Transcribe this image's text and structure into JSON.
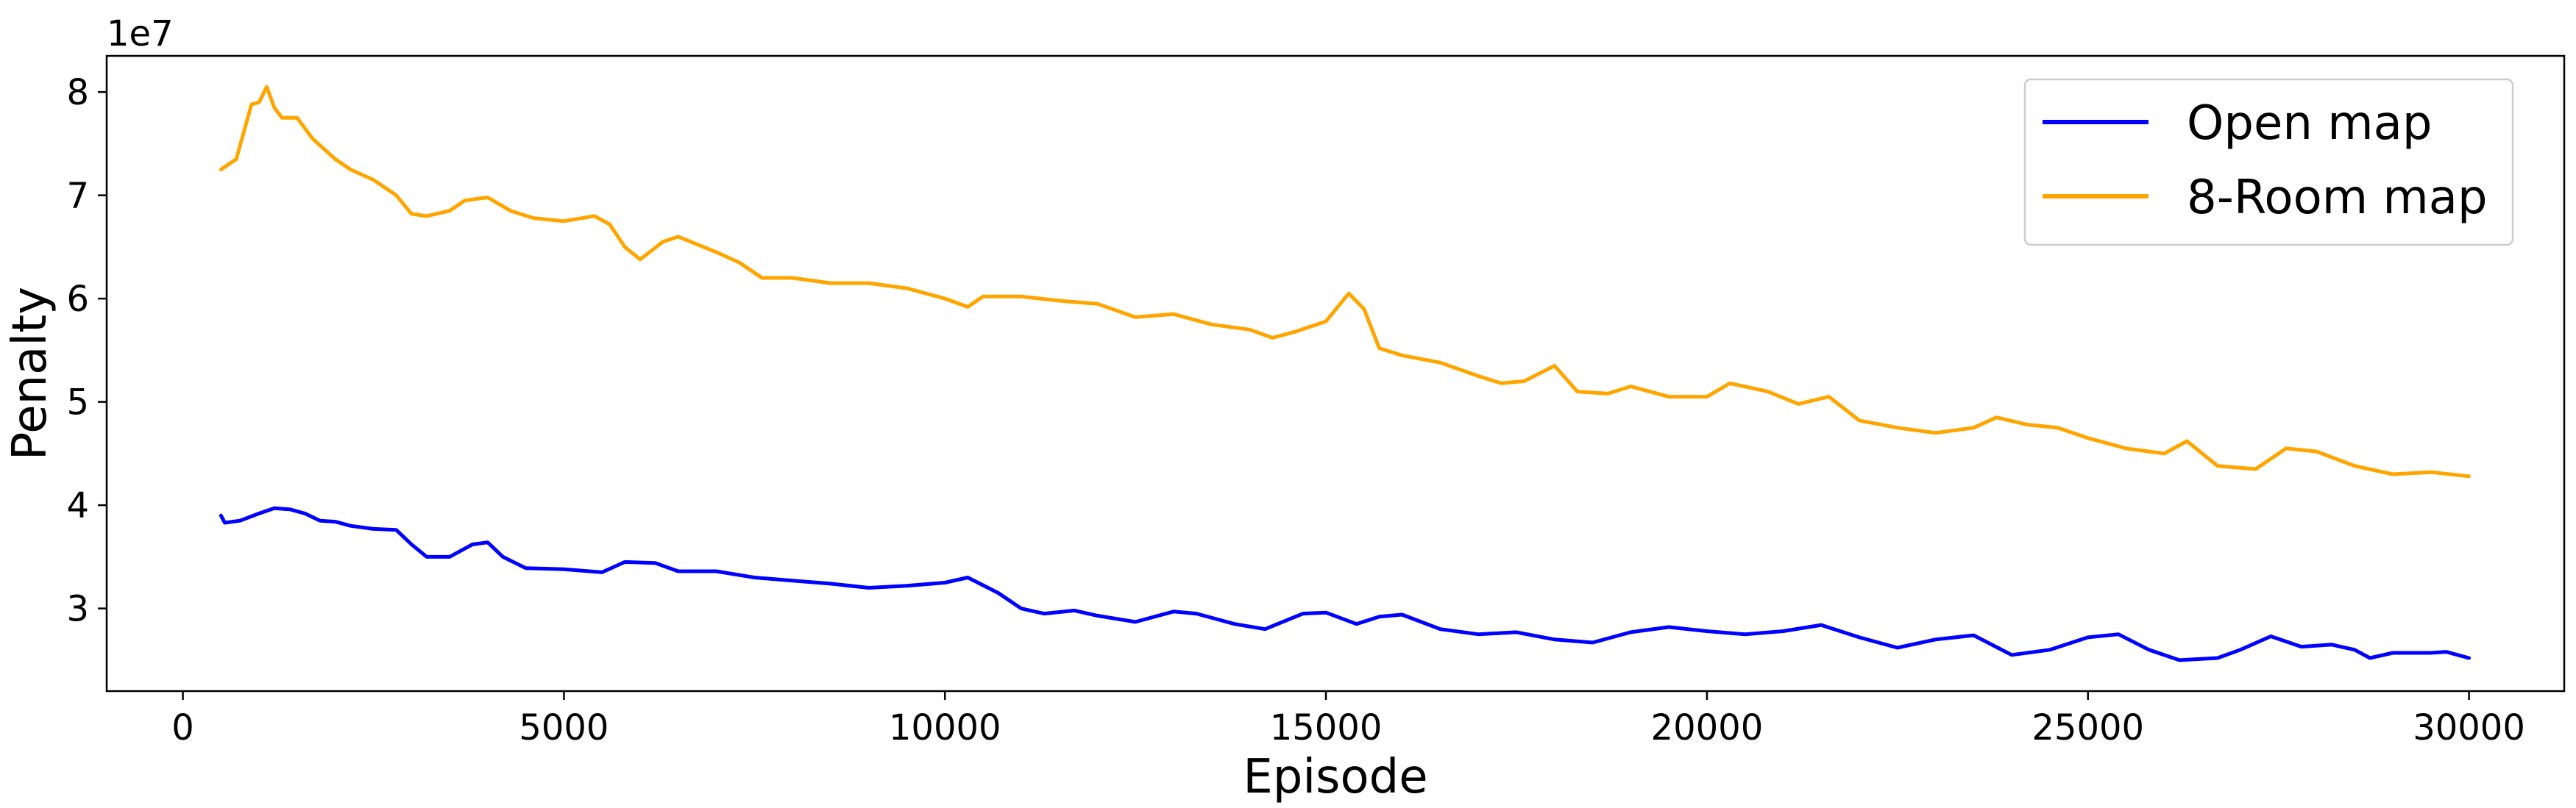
{
  "chart_data": {
    "type": "line",
    "title": "",
    "xlabel": "Episode",
    "ylabel": "Penalty",
    "y_exponent_label": "1e7",
    "xlim": [
      -1000,
      31250
    ],
    "ylim": [
      2.2,
      8.35
    ],
    "x_ticks": [
      0,
      5000,
      10000,
      15000,
      20000,
      25000,
      30000
    ],
    "x_tick_labels": [
      "0",
      "5000",
      "10000",
      "15000",
      "20000",
      "25000",
      "30000"
    ],
    "y_ticks": [
      3,
      4,
      5,
      6,
      7,
      8
    ],
    "y_tick_labels": [
      "3",
      "4",
      "5",
      "6",
      "7",
      "8"
    ],
    "grid": false,
    "legend_position": "top-right",
    "series": [
      {
        "name": "Open map",
        "color": "#0000ff",
        "points": [
          [
            500,
            3.9
          ],
          [
            550,
            3.83
          ],
          [
            750,
            3.85
          ],
          [
            1000,
            3.92
          ],
          [
            1200,
            3.97
          ],
          [
            1400,
            3.96
          ],
          [
            1600,
            3.92
          ],
          [
            1800,
            3.85
          ],
          [
            2000,
            3.84
          ],
          [
            2200,
            3.8
          ],
          [
            2500,
            3.77
          ],
          [
            2800,
            3.76
          ],
          [
            3000,
            3.62
          ],
          [
            3200,
            3.5
          ],
          [
            3500,
            3.5
          ],
          [
            3800,
            3.62
          ],
          [
            4000,
            3.64
          ],
          [
            4200,
            3.5
          ],
          [
            4500,
            3.39
          ],
          [
            5000,
            3.38
          ],
          [
            5500,
            3.35
          ],
          [
            5800,
            3.45
          ],
          [
            6200,
            3.44
          ],
          [
            6500,
            3.36
          ],
          [
            7000,
            3.36
          ],
          [
            7500,
            3.3
          ],
          [
            8000,
            3.27
          ],
          [
            8500,
            3.24
          ],
          [
            9000,
            3.2
          ],
          [
            9500,
            3.22
          ],
          [
            10000,
            3.25
          ],
          [
            10300,
            3.3
          ],
          [
            10700,
            3.15
          ],
          [
            11000,
            3.0
          ],
          [
            11300,
            2.95
          ],
          [
            11700,
            2.98
          ],
          [
            12000,
            2.93
          ],
          [
            12500,
            2.87
          ],
          [
            13000,
            2.97
          ],
          [
            13300,
            2.95
          ],
          [
            13800,
            2.85
          ],
          [
            14200,
            2.8
          ],
          [
            14700,
            2.95
          ],
          [
            15000,
            2.96
          ],
          [
            15400,
            2.85
          ],
          [
            15700,
            2.92
          ],
          [
            16000,
            2.94
          ],
          [
            16500,
            2.8
          ],
          [
            17000,
            2.75
          ],
          [
            17500,
            2.77
          ],
          [
            18000,
            2.7
          ],
          [
            18500,
            2.67
          ],
          [
            19000,
            2.77
          ],
          [
            19500,
            2.82
          ],
          [
            20000,
            2.78
          ],
          [
            20500,
            2.75
          ],
          [
            21000,
            2.78
          ],
          [
            21500,
            2.84
          ],
          [
            22000,
            2.72
          ],
          [
            22500,
            2.62
          ],
          [
            23000,
            2.7
          ],
          [
            23500,
            2.74
          ],
          [
            24000,
            2.55
          ],
          [
            24500,
            2.6
          ],
          [
            25000,
            2.72
          ],
          [
            25400,
            2.75
          ],
          [
            25800,
            2.6
          ],
          [
            26200,
            2.5
          ],
          [
            26700,
            2.52
          ],
          [
            27000,
            2.6
          ],
          [
            27400,
            2.73
          ],
          [
            27800,
            2.63
          ],
          [
            28200,
            2.65
          ],
          [
            28500,
            2.6
          ],
          [
            28700,
            2.52
          ],
          [
            29000,
            2.57
          ],
          [
            29500,
            2.57
          ],
          [
            29700,
            2.58
          ],
          [
            30000,
            2.52
          ]
        ]
      },
      {
        "name": "8-Room map",
        "color": "#ffa500",
        "points": [
          [
            500,
            7.25
          ],
          [
            700,
            7.35
          ],
          [
            900,
            7.88
          ],
          [
            1000,
            7.9
          ],
          [
            1100,
            8.05
          ],
          [
            1200,
            7.85
          ],
          [
            1300,
            7.75
          ],
          [
            1500,
            7.75
          ],
          [
            1700,
            7.55
          ],
          [
            2000,
            7.35
          ],
          [
            2200,
            7.25
          ],
          [
            2500,
            7.15
          ],
          [
            2800,
            7.0
          ],
          [
            3000,
            6.82
          ],
          [
            3200,
            6.8
          ],
          [
            3500,
            6.85
          ],
          [
            3700,
            6.95
          ],
          [
            4000,
            6.98
          ],
          [
            4300,
            6.85
          ],
          [
            4600,
            6.78
          ],
          [
            5000,
            6.75
          ],
          [
            5400,
            6.8
          ],
          [
            5600,
            6.72
          ],
          [
            5800,
            6.5
          ],
          [
            6000,
            6.38
          ],
          [
            6300,
            6.55
          ],
          [
            6500,
            6.6
          ],
          [
            7000,
            6.45
          ],
          [
            7300,
            6.35
          ],
          [
            7600,
            6.2
          ],
          [
            8000,
            6.2
          ],
          [
            8500,
            6.15
          ],
          [
            9000,
            6.15
          ],
          [
            9500,
            6.1
          ],
          [
            10000,
            6.0
          ],
          [
            10300,
            5.92
          ],
          [
            10500,
            6.02
          ],
          [
            11000,
            6.02
          ],
          [
            11500,
            5.98
          ],
          [
            12000,
            5.95
          ],
          [
            12500,
            5.82
          ],
          [
            13000,
            5.85
          ],
          [
            13500,
            5.75
          ],
          [
            14000,
            5.7
          ],
          [
            14300,
            5.62
          ],
          [
            14600,
            5.68
          ],
          [
            15000,
            5.78
          ],
          [
            15300,
            6.05
          ],
          [
            15500,
            5.9
          ],
          [
            15700,
            5.52
          ],
          [
            16000,
            5.45
          ],
          [
            16500,
            5.38
          ],
          [
            17000,
            5.25
          ],
          [
            17300,
            5.18
          ],
          [
            17600,
            5.2
          ],
          [
            18000,
            5.35
          ],
          [
            18300,
            5.1
          ],
          [
            18700,
            5.08
          ],
          [
            19000,
            5.15
          ],
          [
            19500,
            5.05
          ],
          [
            20000,
            5.05
          ],
          [
            20300,
            5.18
          ],
          [
            20800,
            5.1
          ],
          [
            21200,
            4.98
          ],
          [
            21600,
            5.05
          ],
          [
            22000,
            4.82
          ],
          [
            22500,
            4.75
          ],
          [
            23000,
            4.7
          ],
          [
            23500,
            4.75
          ],
          [
            23800,
            4.85
          ],
          [
            24200,
            4.78
          ],
          [
            24600,
            4.75
          ],
          [
            25000,
            4.65
          ],
          [
            25500,
            4.55
          ],
          [
            26000,
            4.5
          ],
          [
            26300,
            4.62
          ],
          [
            26700,
            4.38
          ],
          [
            27200,
            4.35
          ],
          [
            27600,
            4.55
          ],
          [
            28000,
            4.52
          ],
          [
            28500,
            4.38
          ],
          [
            29000,
            4.3
          ],
          [
            29500,
            4.32
          ],
          [
            30000,
            4.28
          ]
        ]
      }
    ]
  }
}
